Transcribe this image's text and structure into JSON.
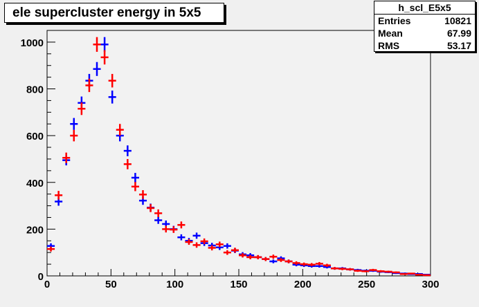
{
  "title": "ele supercluster energy in 5x5",
  "stats": {
    "name": "h_scl_E5x5",
    "rows": [
      {
        "label": "Entries",
        "value": "10821"
      },
      {
        "label": "Mean",
        "value": "67.99"
      },
      {
        "label": "RMS",
        "value": "53.17"
      }
    ]
  },
  "chart_data": {
    "type": "scatter",
    "title": "ele supercluster energy in 5x5",
    "xlim": [
      0,
      300
    ],
    "ylim": [
      0,
      1050
    ],
    "xticks": [
      0,
      50,
      100,
      150,
      200,
      250,
      300
    ],
    "yticks": [
      0,
      200,
      400,
      600,
      800,
      1000
    ],
    "bin_width": 6,
    "grid": false,
    "series": [
      {
        "color": "#0000ff",
        "x": [
          3,
          9,
          15,
          21,
          27,
          33,
          39,
          45,
          51,
          57,
          63,
          69,
          75,
          81,
          87,
          93,
          99,
          105,
          111,
          117,
          123,
          129,
          135,
          141,
          147,
          153,
          159,
          165,
          171,
          177,
          183,
          189,
          195,
          201,
          207,
          213,
          219,
          225,
          231,
          237,
          243,
          249,
          255,
          261,
          267,
          273,
          279,
          285,
          291,
          297
        ],
        "y": [
          128,
          318,
          495,
          650,
          740,
          835,
          885,
          990,
          765,
          600,
          535,
          420,
          322,
          292,
          238,
          222,
          200,
          165,
          150,
          172,
          140,
          130,
          122,
          128,
          108,
          92,
          88,
          80,
          72,
          62,
          75,
          62,
          48,
          45,
          42,
          42,
          38,
          32,
          32,
          28,
          25,
          22,
          22,
          18,
          16,
          12,
          10,
          8,
          8,
          5
        ]
      },
      {
        "color": "#ff0000",
        "x": [
          3,
          9,
          15,
          21,
          27,
          33,
          39,
          45,
          51,
          57,
          63,
          69,
          75,
          81,
          87,
          93,
          99,
          105,
          111,
          117,
          123,
          129,
          135,
          141,
          147,
          153,
          159,
          165,
          171,
          177,
          183,
          189,
          195,
          201,
          207,
          213,
          219,
          225,
          231,
          237,
          243,
          249,
          255,
          261,
          267,
          273,
          279,
          285,
          291,
          297
        ],
        "y": [
          115,
          345,
          505,
          600,
          715,
          815,
          990,
          935,
          835,
          625,
          478,
          382,
          348,
          290,
          268,
          200,
          198,
          218,
          145,
          132,
          148,
          120,
          135,
          100,
          110,
          88,
          80,
          80,
          72,
          82,
          68,
          62,
          55,
          50,
          48,
          52,
          45,
          32,
          30,
          28,
          22,
          20,
          25,
          20,
          18,
          15,
          8,
          10,
          5,
          3
        ]
      }
    ]
  }
}
